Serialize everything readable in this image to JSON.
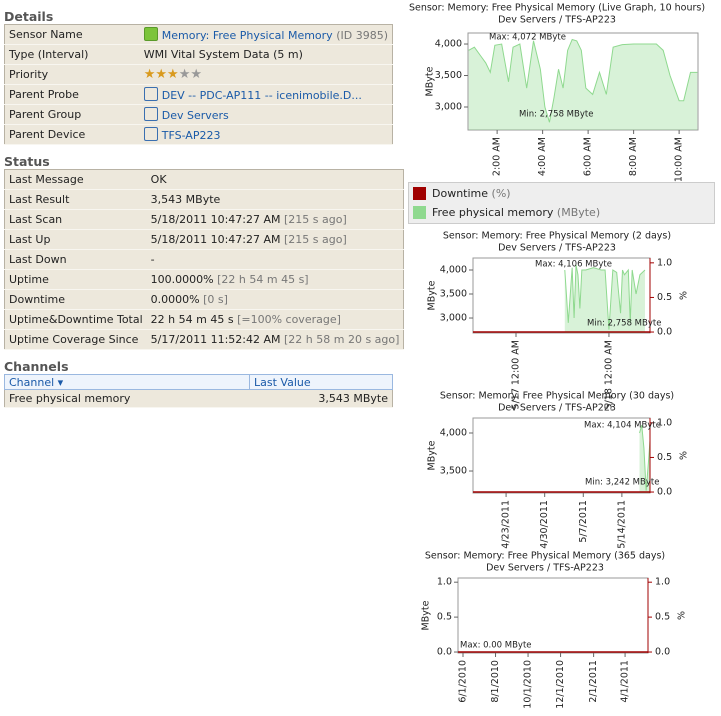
{
  "details": {
    "title": "Details",
    "rows": [
      {
        "label": "Sensor Name",
        "value": "Memory: Free Physical Memory",
        "note": "(ID 3985)"
      },
      {
        "label": "Type (Interval)",
        "value": "WMI Vital System Data (5 m)"
      },
      {
        "label": "Priority",
        "stars": 3,
        "max_stars": 5
      },
      {
        "label": "Parent Probe",
        "value": "DEV -- PDC-AP111 -- icenimobile.D..."
      },
      {
        "label": "Parent Group",
        "value": "Dev Servers"
      },
      {
        "label": "Parent Device",
        "value": "TFS-AP223"
      }
    ]
  },
  "status": {
    "title": "Status",
    "rows": [
      {
        "label": "Last Message",
        "value": "OK"
      },
      {
        "label": "Last Result",
        "value": "3,543 MByte"
      },
      {
        "label": "Last Scan",
        "value": "5/18/2011 10:47:27 AM",
        "note": "[215 s ago]"
      },
      {
        "label": "Last Up",
        "value": "5/18/2011 10:47:27 AM",
        "note": "[215 s ago]"
      },
      {
        "label": "Last Down",
        "value": "-"
      },
      {
        "label": "Uptime",
        "value": "100.0000%",
        "note": "[22 h 54 m 45 s]"
      },
      {
        "label": "Downtime",
        "value": "0.0000%",
        "note": "[0 s]"
      },
      {
        "label": "Uptime&Downtime Total",
        "value": "22 h 54 m 45 s",
        "note": "[=100% coverage]"
      },
      {
        "label": "Uptime Coverage Since",
        "value": "5/17/2011 11:52:42 AM",
        "note": "[22 h 58 m 20 s ago]"
      }
    ]
  },
  "channels": {
    "title": "Channels",
    "columns": [
      "Channel",
      "Last Value"
    ],
    "rows": [
      [
        "Free physical memory",
        "3,543 MByte"
      ]
    ]
  },
  "legend": [
    {
      "name": "Downtime",
      "unit": "(%)",
      "color": "#a00000"
    },
    {
      "name": "Free physical memory",
      "unit": "(MByte)",
      "color": "#8fd98f"
    }
  ],
  "charts": [
    {
      "type": "area",
      "title": "Sensor: Memory: Free Physical Memory (Live Graph, 10 hours)",
      "subtitle": "Dev Servers / TFS-AP223",
      "ylabel": "MByte",
      "xlim": [
        0.72,
        10.83
      ],
      "xticks": [
        {
          "value": 2,
          "label": "2:00 AM"
        },
        {
          "value": 4,
          "label": "4:00 AM"
        },
        {
          "value": 6,
          "label": "6:00 AM"
        },
        {
          "value": 8,
          "label": "8:00 AM"
        },
        {
          "value": 10,
          "label": "10:00 AM"
        }
      ],
      "ylim": [
        2635,
        4175
      ],
      "yticks": [
        {
          "value": 3000,
          "label": "3,000"
        },
        {
          "value": 3500,
          "label": "3,500"
        },
        {
          "value": 4000,
          "label": "4,000"
        }
      ],
      "annotations": [
        "Max: 4,072 MByte",
        "Min: 2,758 MByte"
      ],
      "series": [
        {
          "name": "Free physical memory",
          "color": "#8fd98f",
          "x": [
            0.75,
            1.0,
            1.3,
            1.5,
            1.7,
            1.9,
            2.2,
            2.5,
            2.7,
            3.0,
            3.3,
            3.6,
            3.9,
            4.1,
            4.3,
            4.5,
            4.7,
            4.9,
            5.1,
            5.3,
            5.5,
            5.7,
            5.9,
            6.2,
            6.5,
            6.8,
            7.1,
            7.5,
            8.0,
            8.5,
            9.0,
            9.3,
            9.6,
            9.8,
            10.0,
            10.2,
            10.5,
            10.8
          ],
          "values": [
            3900,
            3950,
            3800,
            3700,
            3550,
            3980,
            4000,
            3400,
            3950,
            4000,
            3300,
            4050,
            3600,
            3000,
            2758,
            3150,
            3600,
            3300,
            3900,
            4072,
            4050,
            3900,
            3300,
            3200,
            3550,
            3200,
            3950,
            3990,
            4000,
            4000,
            4000,
            3900,
            3500,
            3300,
            3100,
            3100,
            3550,
            3550
          ]
        }
      ]
    },
    {
      "type": "area",
      "title": "Sensor: Memory: Free Physical Memory (2 days)",
      "subtitle": "Dev Servers / TFS-AP223",
      "ylabel": "MByte",
      "y2label": "%",
      "xlim": [
        12.9,
        58.6
      ],
      "xticks": [
        {
          "value": 24,
          "label": "5/17 12:00 AM"
        },
        {
          "value": 48,
          "label": "5/18 12:00 AM"
        }
      ],
      "ylim": [
        2688,
        4250
      ],
      "yticks": [
        {
          "value": 3000,
          "label": "3,000"
        },
        {
          "value": 3500,
          "label": "3,500"
        },
        {
          "value": 4000,
          "label": "4,000"
        }
      ],
      "y2lim": [
        -0.014,
        1.07
      ],
      "y2ticks": [
        {
          "value": 0,
          "label": "0.0"
        },
        0.5,
        {
          "value": 1,
          "label": "1.0"
        }
      ],
      "annotations": [
        "Max: 4,106 MByte",
        "Min: 2,758 MByte"
      ],
      "series": [
        {
          "name": "Free physical memory",
          "color": "#8fd98f",
          "x": [
            36.6,
            37.5,
            38.5,
            39,
            39.5,
            40,
            40.5,
            41,
            42,
            44,
            46,
            47,
            48,
            49,
            50,
            51,
            51.5,
            52,
            53,
            53.5,
            54,
            55,
            56,
            57.3
          ],
          "values": [
            4000,
            2900,
            4050,
            3000,
            4106,
            3900,
            3200,
            4000,
            4000,
            4050,
            4000,
            4000,
            2758,
            4000,
            3950,
            3100,
            4000,
            3900,
            4000,
            2900,
            4000,
            3500,
            3900,
            4000
          ]
        },
        {
          "name": "Downtime",
          "color": "#a00000",
          "axis": "y2",
          "x": [
            12.9,
            58.6
          ],
          "values": [
            0,
            0
          ]
        }
      ]
    },
    {
      "type": "area",
      "title": "Sensor: Memory: Free Physical Memory (30 days)",
      "subtitle": "Dev Servers / TFS-AP223",
      "ylabel": "MByte",
      "y2label": "%",
      "xlim": [
        107,
        139.1
      ],
      "xticks": [
        {
          "value": 113,
          "label": "4/23/2011"
        },
        {
          "value": 120,
          "label": "4/30/2011"
        },
        {
          "value": 127,
          "label": "5/7/2011"
        },
        {
          "value": 134,
          "label": "5/14/2011"
        }
      ],
      "ylim": [
        3211,
        4197
      ],
      "yticks": [
        {
          "value": 3500,
          "label": "3,500"
        },
        {
          "value": 4000,
          "label": "4,000"
        }
      ],
      "y2lim": [
        -0.014,
        1.07
      ],
      "y2ticks": [
        {
          "value": 0,
          "label": "0.0"
        },
        0.5,
        {
          "value": 1,
          "label": "1.0"
        }
      ],
      "annotations": [
        "Max: 4,104 MByte",
        "Min: 3,242 MByte"
      ],
      "series": [
        {
          "name": "Free physical memory",
          "color": "#8fd98f",
          "x": [
            137.2,
            137.6,
            138.0,
            138.4,
            138.8,
            139.1
          ],
          "values": [
            4000,
            4104,
            3800,
            3242,
            3600,
            3900
          ]
        },
        {
          "name": "Downtime",
          "color": "#a00000",
          "axis": "y2",
          "x": [
            107,
            139.1
          ],
          "values": [
            0,
            0
          ]
        }
      ]
    },
    {
      "type": "area",
      "title": "Sensor: Memory: Free Physical Memory (365 days)",
      "subtitle": "Dev Servers / TFS-AP223",
      "ylabel": "MByte",
      "y2label": "%",
      "xlim": [
        -9.4,
        347
      ],
      "xticks": [
        {
          "value": 0,
          "label": "6/1/2010"
        },
        {
          "value": 61,
          "label": "8/1/2010"
        },
        {
          "value": 122,
          "label": "10/1/2010"
        },
        {
          "value": 183,
          "label": "12/1/2010"
        },
        {
          "value": 245,
          "label": "2/1/2011"
        },
        {
          "value": 304,
          "label": "4/1/2011"
        }
      ],
      "ylim": [
        -0.014,
        1.06
      ],
      "yticks": [
        {
          "value": 0,
          "label": "0.0"
        },
        0.5,
        {
          "value": 1,
          "label": "1.0"
        }
      ],
      "y2lim": [
        -0.014,
        1.06
      ],
      "y2ticks": [
        {
          "value": 0,
          "label": "0.0"
        },
        0.5,
        {
          "value": 1,
          "label": "1.0"
        }
      ],
      "annotations": [
        "Max: 0.00 MByte"
      ],
      "series": [
        {
          "name": "Downtime",
          "color": "#a00000",
          "axis": "y2",
          "x": [
            -9.4,
            347
          ],
          "values": [
            0,
            0
          ]
        }
      ]
    }
  ]
}
